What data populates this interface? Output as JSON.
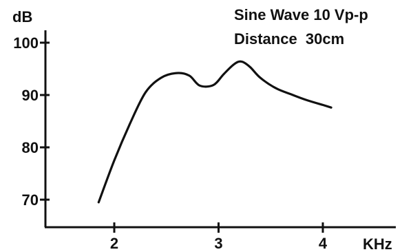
{
  "chart_data": {
    "type": "line",
    "title": "",
    "xlabel": "KHz",
    "ylabel": "dB",
    "xlim": [
      1.35,
      4.7
    ],
    "ylim": [
      65,
      102
    ],
    "x_ticks": [
      2,
      3,
      4
    ],
    "y_ticks": [
      70,
      80,
      90,
      100
    ],
    "x_tick_labels": [
      "2",
      "3",
      "4"
    ],
    "y_tick_labels": [
      "70",
      "80",
      "90",
      "100"
    ],
    "grid": false,
    "annotations": [
      "Sine Wave 10 Vp-p",
      "Distance  30cm"
    ],
    "series": [
      {
        "x": [
          1.85,
          2.0,
          2.15,
          2.3,
          2.45,
          2.6,
          2.72,
          2.82,
          2.95,
          3.05,
          3.15,
          3.22,
          3.3,
          3.4,
          3.55,
          3.7,
          3.85,
          4.0,
          4.08
        ],
        "y": [
          69.5,
          77.5,
          84.5,
          90.5,
          93.3,
          94.2,
          93.7,
          91.8,
          91.9,
          94.0,
          95.9,
          96.4,
          95.4,
          93.3,
          91.3,
          90.1,
          89.0,
          88.1,
          87.6
        ]
      }
    ]
  }
}
